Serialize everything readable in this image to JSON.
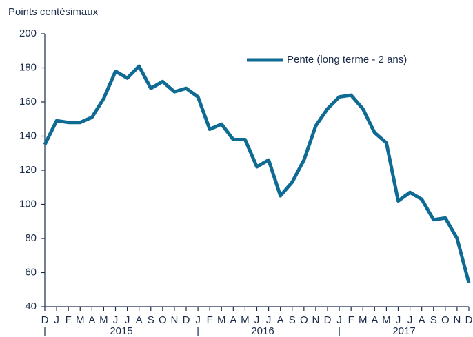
{
  "chart_data": {
    "type": "line",
    "y_axis_label": "Points centésimaux",
    "categories": [
      "D",
      "J",
      "F",
      "M",
      "A",
      "M",
      "J",
      "J",
      "A",
      "S",
      "O",
      "N",
      "D",
      "J",
      "F",
      "M",
      "A",
      "M",
      "J",
      "J",
      "A",
      "S",
      "O",
      "N",
      "D",
      "J",
      "F",
      "M",
      "A",
      "M",
      "J",
      "J",
      "A",
      "S",
      "O",
      "N",
      "D"
    ],
    "years": [
      "2015",
      "2016",
      "2017"
    ],
    "series": [
      {
        "name": "Pente (long terme - 2 ans)",
        "color": "#0f6b93",
        "values": [
          135,
          149,
          148,
          148,
          151,
          162,
          178,
          174,
          181,
          168,
          172,
          166,
          168,
          163,
          144,
          147,
          138,
          138,
          122,
          126,
          105,
          113,
          126,
          146,
          156,
          163,
          164,
          156,
          142,
          136,
          102,
          107,
          103,
          91,
          92,
          80,
          54
        ]
      }
    ],
    "ylim": [
      40,
      200
    ],
    "yticks": [
      40,
      60,
      80,
      100,
      120,
      140,
      160,
      180,
      200
    ],
    "grid": false,
    "legend": "top-right"
  }
}
